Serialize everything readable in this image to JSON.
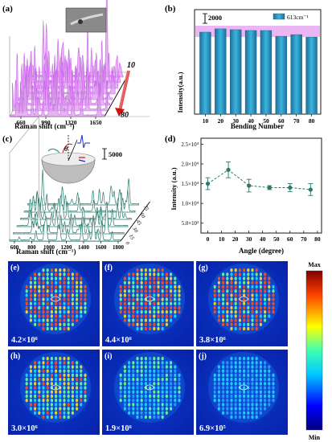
{
  "panel_labels": [
    "(a)",
    "(b)",
    "(c)",
    "(d)",
    "(e)",
    "(f)",
    "(g)",
    "(h)",
    "(i)",
    "(j)"
  ],
  "chart_data": [
    {
      "id": "a",
      "type": "line",
      "xlabel": "Raman shift (cm⁻¹)",
      "x_ticks": [
        "660",
        "990",
        "1320",
        "1650"
      ],
      "depth_ticks": [
        "10",
        "80"
      ],
      "series_count": 8,
      "color": "#cc66ee"
    },
    {
      "id": "b",
      "type": "bar",
      "xlabel": "Bending Number",
      "ylabel": "Intensity(a.u.)",
      "categories": [
        "10",
        "20",
        "30",
        "40",
        "50",
        "60",
        "70",
        "80"
      ],
      "values": [
        1.0,
        1.04,
        1.03,
        1.02,
        1.02,
        0.95,
        0.97,
        0.94
      ],
      "scale_bar_label": "2000",
      "legend": "613cm⁻¹",
      "color": "#2a8fb8"
    },
    {
      "id": "c",
      "type": "line",
      "xlabel": "Raman shift (cm⁻¹)",
      "x_ticks": [
        "600",
        "800",
        "1000",
        "1200",
        "1400",
        "1600",
        "1800"
      ],
      "depth_ticks": [
        "0",
        "15",
        "30",
        "45",
        "60",
        "75"
      ],
      "inset_label": "θ",
      "scale_bar_label": "5000",
      "color": "#2a7a6a"
    },
    {
      "id": "d",
      "type": "line",
      "xlabel": "Angle (degree)",
      "ylabel": "Intensity (a.u.)",
      "x": [
        0,
        15,
        30,
        45,
        60,
        75
      ],
      "y": [
        15000,
        18500,
        14500,
        14000,
        14000,
        13500
      ],
      "err": [
        1500,
        2000,
        1600,
        500,
        1000,
        1500
      ],
      "y_ticks": [
        "5.0×10³",
        "1.0×10⁴",
        "1.5×10⁴",
        "2.0×10⁴",
        "2.5×10⁴"
      ],
      "y_tick_values": [
        5000,
        10000,
        15000,
        20000,
        25000
      ],
      "x_ticks": [
        "0",
        "10",
        "20",
        "30",
        "40",
        "50",
        "60",
        "70",
        "80"
      ],
      "color": "#2a7a6a"
    },
    {
      "id": "maps",
      "type": "heatmap",
      "labels": [
        "4.2×10⁶",
        "4.4×10⁶",
        "3.8×10⁶",
        "3.0×10⁶",
        "1.9×10⁶",
        "6.9×10⁵"
      ],
      "intensities": [
        1.0,
        1.0,
        0.9,
        0.75,
        0.5,
        0.35
      ],
      "colorbar_max": "Max",
      "colorbar_min": "Min"
    }
  ]
}
